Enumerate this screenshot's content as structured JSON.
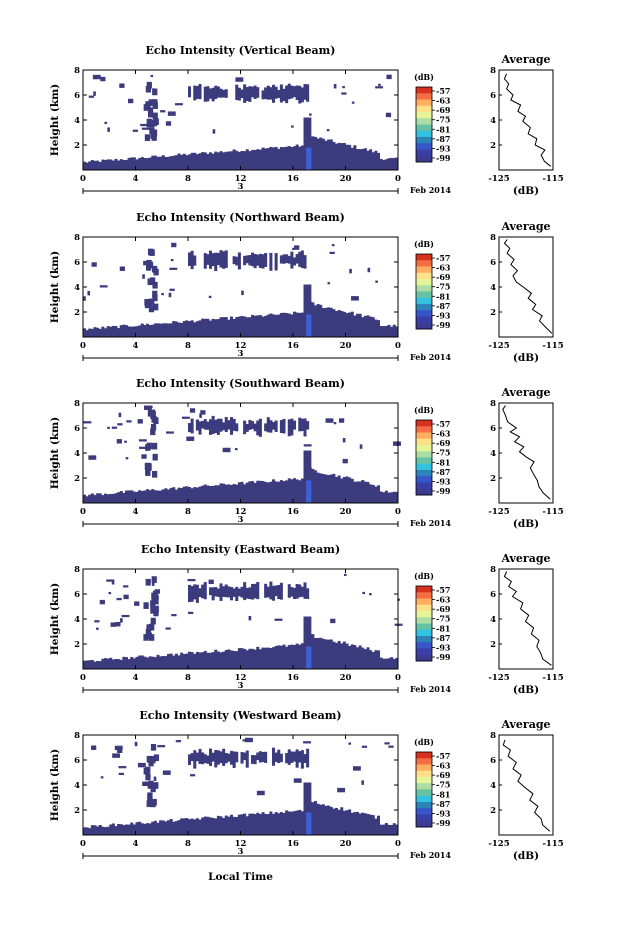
{
  "figure": {
    "xlabel": "Local Time",
    "month_label": "Feb 2014",
    "day_label": "3"
  },
  "colorbar": {
    "unit": "(dB)",
    "ticks": [
      "-57",
      "-63",
      "-69",
      "-75",
      "-81",
      "-87",
      "-93",
      "-99"
    ],
    "colors": [
      "#d7301f",
      "#f46d43",
      "#fdae61",
      "#fee08b",
      "#e6f598",
      "#abdda4",
      "#66c2a5",
      "#33c1e0",
      "#2b83ba",
      "#3555c8",
      "#3a3fa8",
      "#3b3b8f"
    ],
    "cell_color": "#3b3b7e",
    "highlight_color": "#3f5fd6"
  },
  "chart_data": [
    {
      "type": "heatmap",
      "title": "Echo Intensity (Vertical Beam)",
      "ylabel": "Height (km)",
      "xlim": [
        0,
        24
      ],
      "ylim": [
        0,
        8
      ],
      "xticks": [
        "0",
        "4",
        "8",
        "12",
        "16",
        "20",
        "0"
      ],
      "yticks": [
        "2",
        "4",
        "6",
        "8"
      ],
      "profile": {
        "title": "Average",
        "xlabel": "(dB)",
        "xlim": [
          -125,
          -115
        ],
        "xticks": [
          "-125",
          "-115"
        ],
        "yticks": [
          "2",
          "4",
          "6",
          "8"
        ],
        "values": [
          [
            -115.4,
            0.3
          ],
          [
            -116.6,
            0.7
          ],
          [
            -117.2,
            1.2
          ],
          [
            -116.5,
            1.6
          ],
          [
            -118.3,
            2.0
          ],
          [
            -118.0,
            2.5
          ],
          [
            -119.6,
            2.9
          ],
          [
            -119.2,
            3.4
          ],
          [
            -120.6,
            3.9
          ],
          [
            -120.1,
            4.3
          ],
          [
            -121.5,
            4.7
          ],
          [
            -121.0,
            5.2
          ],
          [
            -122.8,
            5.6
          ],
          [
            -122.4,
            6.0
          ],
          [
            -123.6,
            6.5
          ],
          [
            -123.2,
            6.9
          ],
          [
            -124.0,
            7.3
          ],
          [
            -123.6,
            7.7
          ]
        ]
      }
    },
    {
      "type": "heatmap",
      "title": "Echo Intensity (Northward Beam)",
      "ylabel": "Height (km)",
      "xlim": [
        0,
        24
      ],
      "ylim": [
        0,
        8
      ],
      "xticks": [
        "0",
        "4",
        "8",
        "12",
        "16",
        "20",
        "0"
      ],
      "yticks": [
        "2",
        "4",
        "6",
        "8"
      ],
      "profile": {
        "title": "Average",
        "xlabel": "(dB)",
        "xlim": [
          -125,
          -115
        ],
        "xticks": [
          "-125",
          "-115"
        ],
        "yticks": [
          "2",
          "4",
          "6",
          "8"
        ],
        "values": [
          [
            -115.2,
            0.3
          ],
          [
            -116.4,
            0.8
          ],
          [
            -117.5,
            1.3
          ],
          [
            -117.0,
            1.7
          ],
          [
            -118.8,
            2.2
          ],
          [
            -118.2,
            2.6
          ],
          [
            -119.6,
            3.1
          ],
          [
            -119.0,
            3.5
          ],
          [
            -120.5,
            4.0
          ],
          [
            -121.8,
            4.4
          ],
          [
            -122.4,
            4.9
          ],
          [
            -121.6,
            5.3
          ],
          [
            -122.8,
            5.8
          ],
          [
            -122.2,
            6.2
          ],
          [
            -123.5,
            6.7
          ],
          [
            -123.0,
            7.1
          ],
          [
            -124.0,
            7.5
          ],
          [
            -123.5,
            7.8
          ]
        ]
      }
    },
    {
      "type": "heatmap",
      "title": "Echo Intensity (Southward Beam)",
      "ylabel": "Height (km)",
      "xlim": [
        0,
        24
      ],
      "ylim": [
        0,
        8
      ],
      "xticks": [
        "0",
        "4",
        "8",
        "12",
        "16",
        "20",
        "0"
      ],
      "yticks": [
        "2",
        "4",
        "6",
        "8"
      ],
      "profile": {
        "title": "Average",
        "xlabel": "(dB)",
        "xlim": [
          -125,
          -115
        ],
        "xticks": [
          "-125",
          "-115"
        ],
        "yticks": [
          "2",
          "4",
          "6",
          "8"
        ],
        "values": [
          [
            -115.5,
            0.3
          ],
          [
            -116.8,
            0.8
          ],
          [
            -117.6,
            1.3
          ],
          [
            -117.9,
            1.8
          ],
          [
            -118.6,
            2.3
          ],
          [
            -119.2,
            2.8
          ],
          [
            -118.5,
            3.3
          ],
          [
            -120.0,
            3.7
          ],
          [
            -121.2,
            4.1
          ],
          [
            -120.4,
            4.5
          ],
          [
            -122.1,
            4.9
          ],
          [
            -121.2,
            5.3
          ],
          [
            -122.9,
            5.7
          ],
          [
            -121.8,
            6.0
          ],
          [
            -123.4,
            6.5
          ],
          [
            -123.8,
            7.0
          ],
          [
            -124.3,
            7.5
          ],
          [
            -123.8,
            7.8
          ]
        ]
      }
    },
    {
      "type": "heatmap",
      "title": "Echo Intensity (Eastward Beam)",
      "ylabel": "Height (km)",
      "xlim": [
        0,
        24
      ],
      "ylim": [
        0,
        8
      ],
      "xticks": [
        "0",
        "4",
        "8",
        "12",
        "16",
        "20",
        "0"
      ],
      "yticks": [
        "2",
        "4",
        "6",
        "8"
      ],
      "profile": {
        "title": "Average",
        "xlabel": "(dB)",
        "xlim": [
          -125,
          -115
        ],
        "xticks": [
          "-125",
          "-115"
        ],
        "yticks": [
          "2",
          "4",
          "6",
          "8"
        ],
        "values": [
          [
            -115.3,
            0.3
          ],
          [
            -116.9,
            0.8
          ],
          [
            -117.3,
            1.3
          ],
          [
            -118.0,
            1.8
          ],
          [
            -117.6,
            2.3
          ],
          [
            -119.0,
            2.8
          ],
          [
            -118.6,
            3.3
          ],
          [
            -120.1,
            3.8
          ],
          [
            -119.5,
            4.3
          ],
          [
            -121.0,
            4.8
          ],
          [
            -120.6,
            5.3
          ],
          [
            -122.5,
            5.8
          ],
          [
            -121.8,
            6.2
          ],
          [
            -123.2,
            6.6
          ],
          [
            -122.7,
            7.0
          ],
          [
            -124.0,
            7.4
          ],
          [
            -123.6,
            7.8
          ]
        ]
      }
    },
    {
      "type": "heatmap",
      "title": "Echo Intensity (Westward Beam)",
      "ylabel": "Height (km)",
      "xlim": [
        0,
        24
      ],
      "ylim": [
        0,
        8
      ],
      "xticks": [
        "0",
        "4",
        "8",
        "12",
        "16",
        "20",
        "0"
      ],
      "yticks": [
        "2",
        "4",
        "6",
        "8"
      ],
      "profile": {
        "title": "Average",
        "xlabel": "(dB)",
        "xlim": [
          -125,
          -115
        ],
        "xticks": [
          "-125",
          "-115"
        ],
        "yticks": [
          "2",
          "4",
          "6",
          "8"
        ],
        "values": [
          [
            -115.6,
            0.3
          ],
          [
            -116.9,
            0.8
          ],
          [
            -117.2,
            1.3
          ],
          [
            -118.4,
            1.8
          ],
          [
            -117.8,
            2.3
          ],
          [
            -119.3,
            2.8
          ],
          [
            -118.7,
            3.3
          ],
          [
            -120.2,
            3.8
          ],
          [
            -121.5,
            4.3
          ],
          [
            -120.9,
            4.8
          ],
          [
            -122.4,
            5.3
          ],
          [
            -121.8,
            5.8
          ],
          [
            -123.3,
            6.3
          ],
          [
            -122.9,
            6.8
          ],
          [
            -124.2,
            7.2
          ],
          [
            -123.9,
            7.6
          ]
        ]
      }
    }
  ]
}
